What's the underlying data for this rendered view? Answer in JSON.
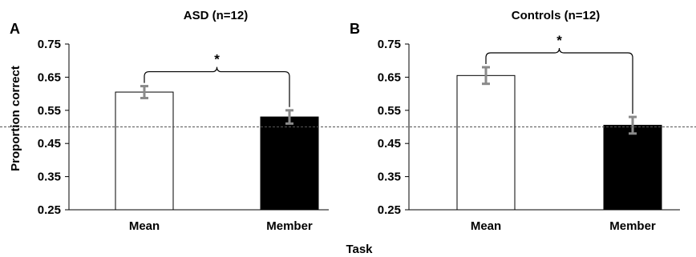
{
  "figure": {
    "xlabel": "Task",
    "ylabel": "Proportion correct",
    "chance_level": 0.5,
    "significance_marker": "*"
  },
  "chart_data": [
    {
      "type": "bar",
      "panel_label": "A",
      "title": "ASD (n=12)",
      "categories": [
        "Mean",
        "Member"
      ],
      "values": [
        0.605,
        0.53
      ],
      "errors": [
        0.018,
        0.02
      ],
      "bar_colors": [
        "#ffffff",
        "#000000"
      ],
      "yticks": [
        "0.75",
        "0.65",
        "0.55",
        "0.45",
        "0.35",
        "0.25"
      ],
      "ylim": [
        0.25,
        0.75
      ],
      "grid": false,
      "reference_line": 0.5
    },
    {
      "type": "bar",
      "panel_label": "B",
      "title": "Controls (n=12)",
      "categories": [
        "Mean",
        "Member"
      ],
      "values": [
        0.655,
        0.505
      ],
      "errors": [
        0.025,
        0.025
      ],
      "bar_colors": [
        "#ffffff",
        "#000000"
      ],
      "yticks": [
        "0.75",
        "0.65",
        "0.55",
        "0.45",
        "0.35",
        "0.25"
      ],
      "ylim": [
        0.25,
        0.75
      ],
      "grid": false,
      "reference_line": 0.5
    }
  ],
  "colors": {
    "error_bar": "#8a8a8a",
    "reference_line": "#555555",
    "axis": "#000000"
  }
}
